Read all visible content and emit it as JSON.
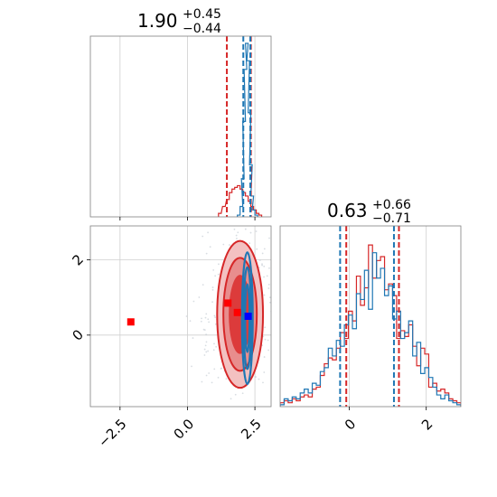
{
  "chart_data": {
    "type": "corner",
    "titles": [
      {
        "median": "1.90",
        "plus": "+0.45",
        "minus": "−0.44"
      },
      {
        "median": "0.63",
        "plus": "+0.66",
        "minus": "−0.71"
      }
    ],
    "x_param1": {
      "range": [
        -3.6,
        3.1
      ],
      "ticks": [
        -2.5,
        0.0,
        2.5
      ],
      "tick_labels": [
        "−2.5",
        "0.0",
        "2.5"
      ]
    },
    "x_param2": {
      "range": [
        -1.8,
        2.9
      ],
      "ticks": [
        0,
        2
      ],
      "tick_labels": [
        "0",
        "2"
      ]
    },
    "y_param2": {
      "range": [
        -1.9,
        2.9
      ],
      "ticks": [
        0,
        2
      ],
      "tick_labels": [
        "0",
        "2"
      ]
    },
    "grid": true,
    "series": [
      {
        "color": "#d62728",
        "hist1": {
          "x": [
            1.2,
            1.35,
            1.5,
            1.6,
            1.7,
            1.8,
            1.9,
            2.0,
            2.1,
            2.2,
            2.3,
            2.4,
            2.5,
            2.6,
            2.7
          ],
          "y": [
            0.02,
            0.06,
            0.1,
            0.14,
            0.16,
            0.17,
            0.18,
            0.16,
            0.14,
            0.12,
            0.09,
            0.06,
            0.04,
            0.02,
            0.01
          ]
        },
        "quantiles1": [
          1.46,
          2.35
        ],
        "hist2_bins": [
          -1.8,
          2.9,
          45
        ],
        "hist2_counts": [
          2,
          3,
          2,
          4,
          3,
          5,
          6,
          5,
          9,
          10,
          16,
          22,
          25,
          24,
          30,
          38,
          35,
          49,
          44,
          67,
          52,
          61,
          83,
          66,
          75,
          77,
          60,
          63,
          57,
          35,
          39,
          36,
          42,
          31,
          21,
          30,
          27,
          10,
          12,
          8,
          9,
          7,
          4,
          3,
          2
        ],
        "quantiles2": [
          -0.08,
          1.29
        ],
        "markers": [
          {
            "x": -2.1,
            "y": 0.35
          },
          {
            "x": 1.5,
            "y": 0.85
          },
          {
            "x": 1.85,
            "y": 0.6
          }
        ]
      },
      {
        "color": "#1f77b4",
        "hist1": {
          "x": [
            1.9,
            2.0,
            2.05,
            2.1,
            2.15,
            2.2,
            2.25,
            2.3,
            2.35,
            2.4,
            2.45,
            2.55
          ],
          "y": [
            0.01,
            0.06,
            0.22,
            0.55,
            0.85,
            1.0,
            0.9,
            0.6,
            0.3,
            0.12,
            0.04,
            0.01
          ]
        },
        "quantiles1": [
          2.07,
          2.33
        ],
        "hist2_bins": [
          -1.8,
          2.9,
          45
        ],
        "hist2_counts": [
          1,
          4,
          3,
          5,
          4,
          7,
          9,
          7,
          12,
          11,
          18,
          20,
          30,
          26,
          34,
          31,
          42,
          47,
          40,
          58,
          55,
          70,
          50,
          79,
          66,
          71,
          57,
          62,
          45,
          49,
          35,
          38,
          44,
          26,
          33,
          17,
          20,
          15,
          10,
          6,
          4,
          6,
          3,
          2,
          1
        ],
        "quantiles2": [
          -0.24,
          1.16
        ],
        "markers": [
          {
            "x": 2.25,
            "y": 0.5
          }
        ]
      }
    ]
  }
}
